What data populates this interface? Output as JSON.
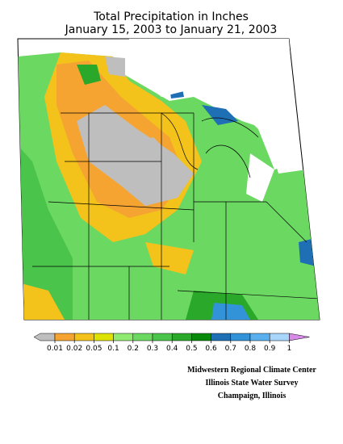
{
  "title": [
    "Total Precipitation in Inches",
    "January 15, 2003 to January 21, 2003"
  ],
  "legend": {
    "ticks": [
      0.01,
      0.02,
      0.05,
      0.1,
      0.2,
      0.3,
      0.4,
      0.5,
      0.6,
      0.7,
      0.8,
      0.9,
      1
    ],
    "colors": [
      "#bebebe",
      "#f5a431",
      "#f3c31c",
      "#dde200",
      "#8fea72",
      "#6bd862",
      "#4bc44b",
      "#2aa82a",
      "#0a8a0a",
      "#1f6fb4",
      "#3393d8",
      "#5ab0ee",
      "#a8d6fa",
      "#d88ae8"
    ]
  },
  "credits": [
    "Midwestern Regional Climate Center",
    "Illinois State Water Survey",
    "Champaign, Illinois"
  ]
}
